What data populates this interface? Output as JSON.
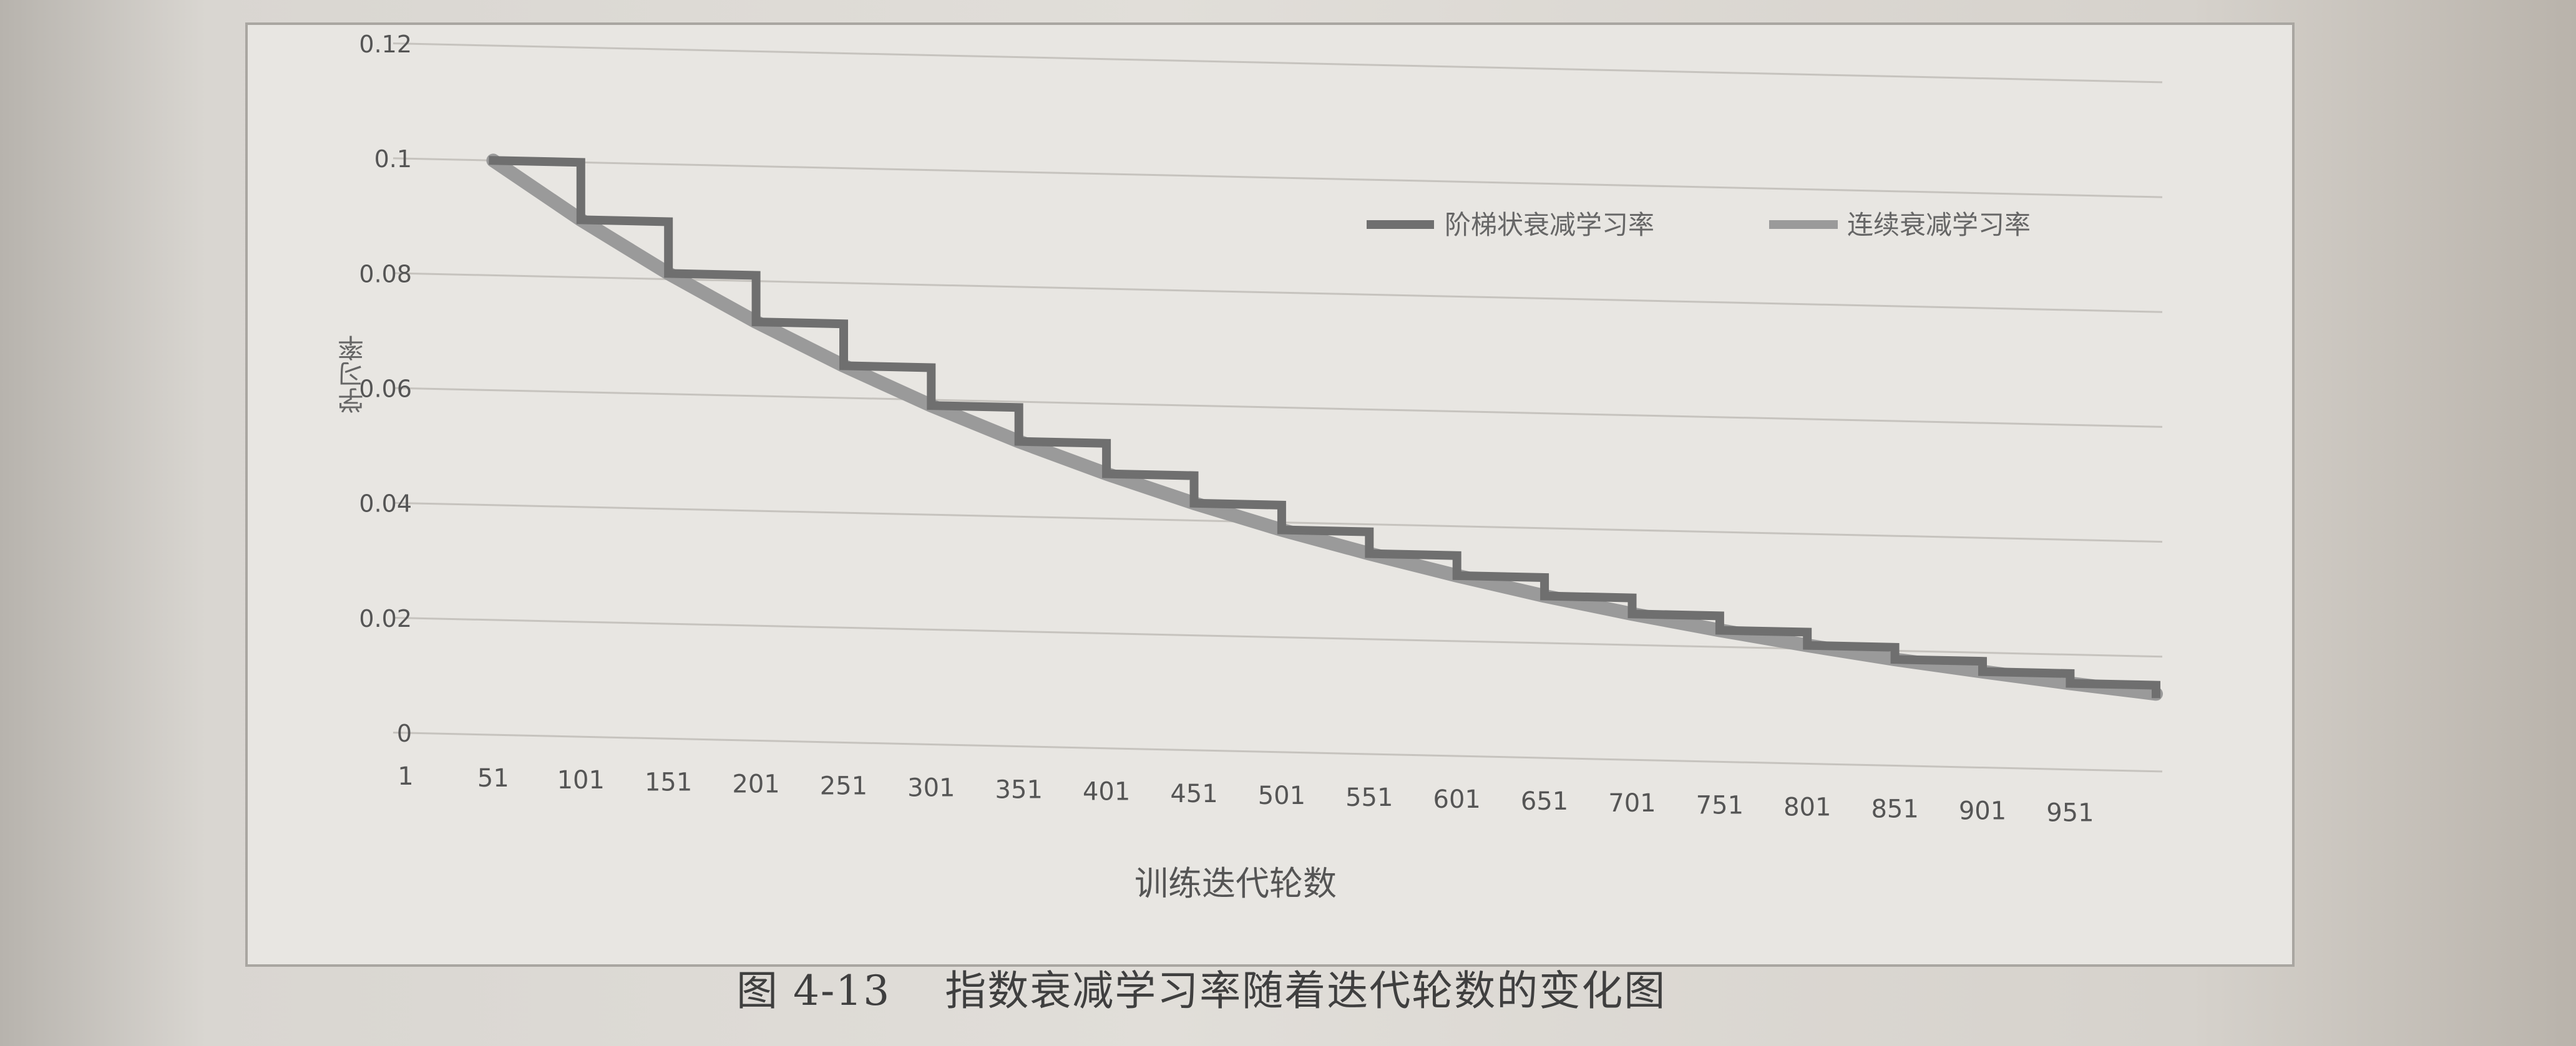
{
  "chart_data": {
    "type": "line",
    "xlabel": "训练迭代轮数",
    "ylabel": "学习率",
    "ylim": [
      0,
      0.12
    ],
    "yticks": [
      "0",
      "0.02",
      "0.04",
      "0.06",
      "0.08",
      "0.1",
      "0.12"
    ],
    "categories": [
      "1",
      "51",
      "101",
      "151",
      "201",
      "251",
      "301",
      "351",
      "401",
      "451",
      "501",
      "551",
      "601",
      "651",
      "701",
      "751",
      "801",
      "851",
      "901",
      "951"
    ],
    "grid": "horizontal",
    "legend": "top-right",
    "x_range": [
      1,
      1000
    ],
    "series": [
      {
        "name": "阶梯状衰减学习率",
        "style": "step",
        "color": "#6f6f6f",
        "x": [
          51,
          101,
          151,
          201,
          251,
          301,
          351,
          401,
          451,
          501,
          551,
          601,
          651,
          701,
          751,
          801,
          851,
          901,
          951,
          1000
        ],
        "values": [
          0.1,
          0.09,
          0.081,
          0.0729,
          0.0656,
          0.059,
          0.0531,
          0.0478,
          0.043,
          0.0387,
          0.0349,
          0.0314,
          0.0282,
          0.0254,
          0.0229,
          0.0206,
          0.0185,
          0.0167,
          0.015,
          0.0135
        ]
      },
      {
        "name": "连续衰减学习率",
        "style": "continuous",
        "color": "#9a9a9a",
        "x": [
          51,
          101,
          151,
          201,
          251,
          301,
          351,
          401,
          451,
          501,
          551,
          601,
          651,
          701,
          751,
          801,
          851,
          901,
          951,
          1000
        ],
        "values": [
          0.1,
          0.09,
          0.081,
          0.0729,
          0.0656,
          0.059,
          0.0531,
          0.0478,
          0.043,
          0.0387,
          0.0349,
          0.0314,
          0.0282,
          0.0254,
          0.0229,
          0.0206,
          0.0185,
          0.0167,
          0.015,
          0.0135
        ]
      }
    ]
  },
  "caption": {
    "figure_number": "图 4-13",
    "text": "指数衰减学习率随着迭代轮数的变化图"
  }
}
